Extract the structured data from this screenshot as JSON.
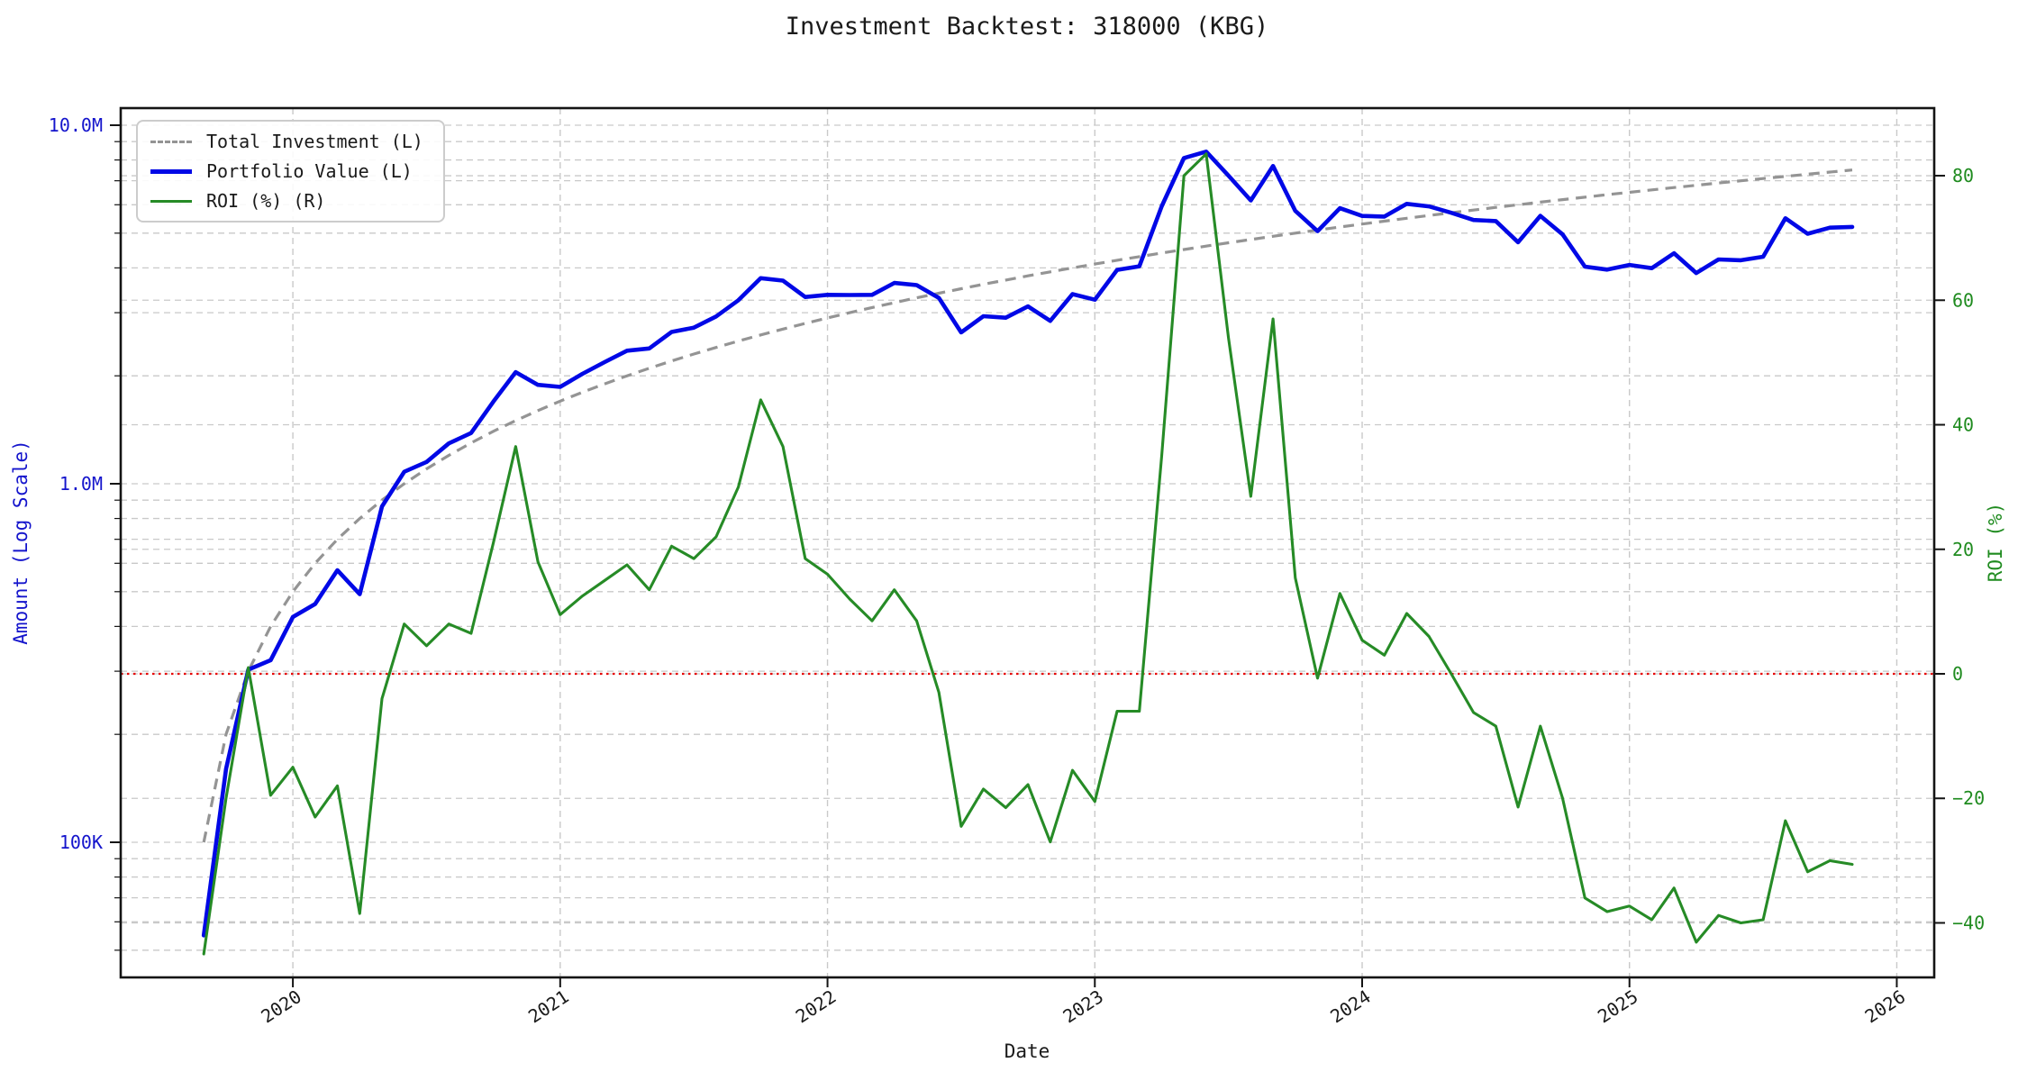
{
  "title": "Investment Backtest: 318000 (KBG)",
  "axes": {
    "x_label": "Date",
    "left_label": "Amount (Log Scale)",
    "right_label": "ROI (%)",
    "left_tick_labels": [
      "10.0M",
      "1.0M",
      "100K"
    ],
    "left_tick_values": [
      10000000,
      1000000,
      100000
    ],
    "right_tick_values": [
      80,
      60,
      40,
      20,
      0,
      -20,
      -40
    ],
    "x_tick_values": [
      2020,
      2021,
      2022,
      2023,
      2024,
      2025,
      2026
    ]
  },
  "legend": {
    "items": [
      "Total Investment (L)",
      "Portfolio Value (L)",
      "ROI (%) (R)"
    ]
  },
  "colors": {
    "portfolio": "#0008e6",
    "investment": "#949494",
    "roi": "#268b26",
    "zero_line": "#e60000",
    "left_axis_text": "#1414cc",
    "right_axis_text": "#1f8b1f",
    "grid": "#c9c9c9",
    "spine": "#141414",
    "title_text": "#1a1a1a"
  },
  "chart_data": {
    "type": "line",
    "title": "Investment Backtest: 318000 (KBG)",
    "xlabel": "Date",
    "ylabel_left": "Amount (Log Scale)",
    "ylabel_right": "ROI (%)",
    "left_axis": {
      "scale": "log",
      "range": [
        42000,
        11200000
      ],
      "ticks": [
        100000,
        1000000,
        10000000
      ]
    },
    "right_axis": {
      "scale": "linear",
      "range": [
        -48.8,
        90.9
      ],
      "ticks": [
        -40,
        -20,
        0,
        20,
        40,
        60,
        80
      ]
    },
    "x_axis": {
      "range_years": [
        2019.356,
        2026.14
      ],
      "ticks": [
        2020,
        2021,
        2022,
        2023,
        2024,
        2025,
        2026
      ]
    },
    "grid": true,
    "legend_position": "upper-left",
    "zero_line": {
      "value": 0,
      "axis": "right",
      "style": "dotted",
      "color": "#e60000"
    },
    "monthly_contribution": 100000,
    "x": [
      "2019-08",
      "2019-09",
      "2019-10",
      "2019-11",
      "2019-12",
      "2020-01",
      "2020-02",
      "2020-03",
      "2020-04",
      "2020-05",
      "2020-06",
      "2020-07",
      "2020-08",
      "2020-09",
      "2020-10",
      "2020-11",
      "2020-12",
      "2021-01",
      "2021-02",
      "2021-03",
      "2021-04",
      "2021-05",
      "2021-06",
      "2021-07",
      "2021-08",
      "2021-09",
      "2021-10",
      "2021-11",
      "2021-12",
      "2022-01",
      "2022-02",
      "2022-03",
      "2022-04",
      "2022-05",
      "2022-06",
      "2022-07",
      "2022-08",
      "2022-09",
      "2022-10",
      "2022-11",
      "2022-12",
      "2023-01",
      "2023-02",
      "2023-03",
      "2023-04",
      "2023-05",
      "2023-06",
      "2023-07",
      "2023-08",
      "2023-09",
      "2023-10",
      "2023-11",
      "2023-12",
      "2024-01",
      "2024-02",
      "2024-03",
      "2024-04",
      "2024-05",
      "2024-06",
      "2024-07",
      "2024-08",
      "2024-09",
      "2024-10",
      "2024-11",
      "2024-12",
      "2025-01",
      "2025-02",
      "2025-03",
      "2025-04",
      "2025-05",
      "2025-06",
      "2025-07",
      "2025-08",
      "2025-09",
      "2025-10"
    ],
    "series": [
      {
        "name": "Total Investment (L)",
        "axis": "left",
        "color": "#949494",
        "style": "dashed",
        "values": [
          100000,
          200000,
          300000,
          400000,
          500000,
          600000,
          700000,
          800000,
          900000,
          1000000,
          1100000,
          1200000,
          1300000,
          1400000,
          1500000,
          1600000,
          1700000,
          1800000,
          1900000,
          2000000,
          2100000,
          2200000,
          2300000,
          2400000,
          2500000,
          2600000,
          2700000,
          2800000,
          2900000,
          3000000,
          3100000,
          3200000,
          3300000,
          3400000,
          3500000,
          3600000,
          3700000,
          3800000,
          3900000,
          4000000,
          4100000,
          4200000,
          4300000,
          4400000,
          4500000,
          4600000,
          4700000,
          4800000,
          4900000,
          5000000,
          5100000,
          5200000,
          5300000,
          5400000,
          5500000,
          5600000,
          5700000,
          5800000,
          5900000,
          6000000,
          6100000,
          6200000,
          6300000,
          6400000,
          6500000,
          6600000,
          6700000,
          6800000,
          6900000,
          7000000,
          7100000,
          7200000,
          7300000,
          7400000,
          7500000
        ]
      },
      {
        "name": "Portfolio Value (L)",
        "axis": "left",
        "color": "#0008e6",
        "style": "solid",
        "values": [
          55000,
          160000,
          303000,
          322000,
          425000,
          462000,
          574000,
          492000,
          864000,
          1080000,
          1150000,
          1296000,
          1385000,
          1694000,
          2048000,
          1888000,
          1862000,
          2025000,
          2185000,
          2350000,
          2384000,
          2651000,
          2726000,
          2928000,
          3250000,
          3744000,
          3686000,
          3318000,
          3364000,
          3360000,
          3364000,
          3632000,
          3581000,
          3298000,
          2643000,
          2934000,
          2905000,
          3124000,
          2847000,
          3380000,
          3260000,
          3948000,
          4042000,
          5940000,
          8100000,
          8441000,
          7238000,
          6168000,
          7693000,
          5770000,
          5064000,
          5871000,
          5586000,
          5562000,
          6034000,
          5936000,
          5700000,
          5440000,
          5404000,
          4716000,
          5588000,
          4960000,
          4032000,
          3955000,
          4076000,
          3993000,
          4395000,
          3869000,
          4223000,
          4200000,
          4296000,
          5501000,
          4979000,
          5180000,
          5205000
        ]
      },
      {
        "name": "ROI (%) (R)",
        "axis": "right",
        "color": "#268b26",
        "style": "solid",
        "values": [
          -45,
          -20,
          1,
          -19.5,
          -15,
          -23,
          -18,
          -38.5,
          -4,
          8,
          4.5,
          8,
          6.5,
          21,
          36.5,
          18,
          9.5,
          12.5,
          15,
          17.5,
          13.5,
          20.5,
          18.5,
          22,
          30,
          44,
          36.5,
          18.5,
          16,
          12,
          8.5,
          13.5,
          8.5,
          -3,
          -24.5,
          -18.5,
          -21.5,
          -17.8,
          -27,
          -15.5,
          -20.5,
          -6,
          -6,
          35,
          80,
          83.5,
          54,
          28.5,
          57,
          15.4,
          -0.7,
          12.9,
          5.4,
          3,
          9.7,
          6,
          0,
          -6.2,
          -8.4,
          -21.4,
          -8.4,
          -20,
          -36,
          -38.2,
          -37.3,
          -39.5,
          -34.4,
          -43.1,
          -38.8,
          -40,
          -39.5,
          -23.6,
          -31.8,
          -30,
          -30.6
        ]
      }
    ]
  }
}
